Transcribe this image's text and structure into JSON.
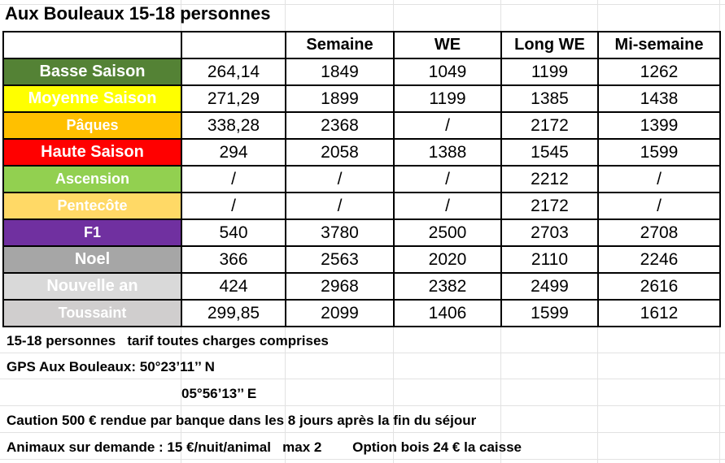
{
  "title": "Aux Bouleaux 15-18 personnes",
  "headers": [
    "",
    "",
    "Semaine",
    "WE",
    "Long WE",
    "Mi-semaine"
  ],
  "rows": [
    {
      "season": "Basse Saison",
      "color": "#548235",
      "values": [
        "264,14",
        "1849",
        "1049",
        "1199",
        "1262"
      ]
    },
    {
      "season": "Moyenne Saison",
      "color": "#FFFF00",
      "values": [
        "271,29",
        "1899",
        "1199",
        "1385",
        "1438"
      ]
    },
    {
      "season": "Pâques",
      "color": "#FFC000",
      "values": [
        "338,28",
        "2368",
        "/",
        "2172",
        "1399"
      ]
    },
    {
      "season": "Haute Saison",
      "color": "#FF0000",
      "values": [
        "294",
        "2058",
        "1388",
        "1545",
        "1599"
      ]
    },
    {
      "season": "Ascension",
      "color": "#92D050",
      "values": [
        "/",
        "/",
        "/",
        "2212",
        "/"
      ]
    },
    {
      "season": "Pentecôte",
      "color": "#FFD966",
      "values": [
        "/",
        "/",
        "/",
        "2172",
        "/"
      ]
    },
    {
      "season": "F1",
      "color": "#7030A0",
      "values": [
        "540",
        "3780",
        "2500",
        "2703",
        "2708"
      ]
    },
    {
      "season": "Noel",
      "color": "#A6A6A6",
      "values": [
        "366",
        "2563",
        "2020",
        "2110",
        "2246"
      ]
    },
    {
      "season": "Nouvelle an",
      "color": "#D9D9D9",
      "values": [
        "424",
        "2968",
        "2382",
        "2499",
        "2616"
      ]
    },
    {
      "season": "Toussaint",
      "color": "#D0CECE",
      "values": [
        "299,85",
        "2099",
        "1406",
        "1599",
        "1612"
      ]
    }
  ],
  "notes": {
    "line1": "15-18 personnes   tarif toutes charges comprises",
    "line2": "GPS Aux Bouleaux: 50°23’11’’ N",
    "line3": "05°56’13’’ E",
    "line4": "Caution 500 € rendue par banque dans les 8 jours après la fin du séjour",
    "line5": "Animaux sur demande : 15 €/nuit/animal   max 2        Option bois 24 € la caisse"
  }
}
